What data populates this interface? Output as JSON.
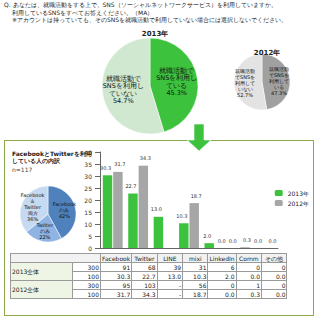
{
  "header": {
    "question": "Q. あなたは、就職活動をする上で、SNS（ソーシャルネットワークサービス）を利用していますか。",
    "instruction": "利用しているSNSをすべてお答えください。（MA）",
    "note": "※アカウントは持っていても、そのSNSを就職活動で利用していない場合には選択しないでください。"
  },
  "chart_data": [
    {
      "type": "pie",
      "title": "2013年",
      "categories": [
        "就職活動でSNSを利用している",
        "就職活動でSNSを利用していない"
      ],
      "values": [
        45.3,
        54.7
      ],
      "value_labels": [
        "45.3%",
        "54.7%"
      ],
      "colors": [
        "#3cc23c",
        "#cfe8cf"
      ],
      "data_labels": true
    },
    {
      "type": "pie",
      "title": "2012年",
      "categories": [
        "就職活動でSNSを利用している",
        "就職活動でSNSを利用していない"
      ],
      "values": [
        47.3,
        52.7
      ],
      "value_labels": [
        "47.3%",
        "52.7%"
      ],
      "colors": [
        "#a0a0a0",
        "#e3e3e3"
      ],
      "data_labels": true
    },
    {
      "type": "pie",
      "title": "FacebookとTwitterを利用している人の内訳",
      "subtitle": "n=117",
      "categories": [
        "Facebookのみ",
        "Twitterのみ",
        "Facebook＆Twitter両方"
      ],
      "values": [
        42,
        22,
        36
      ],
      "value_labels": [
        "42%",
        "22%",
        "36%"
      ],
      "colors": [
        "#4f81bd",
        "#8fb4e3",
        "#c5d9f1"
      ],
      "data_labels": true
    },
    {
      "type": "bar",
      "categories": [
        "Facebook",
        "Twitter",
        "LINE",
        "mixi",
        "LinkedIn",
        "Comm",
        "その他"
      ],
      "series": [
        {
          "name": "2013年",
          "color": "#3cc23c",
          "values": [
            30.3,
            22.7,
            13.0,
            10.3,
            2.0,
            0.0,
            0.0
          ],
          "value_labels": [
            "30.3",
            "22.7",
            "13.0",
            "10.3",
            "2.0",
            "0.0",
            "0.0"
          ]
        },
        {
          "name": "2012年",
          "color": "#a6a6a6",
          "values": [
            31.7,
            34.3,
            null,
            18.7,
            0.0,
            0.3,
            0.0
          ],
          "value_labels": [
            "31.7",
            "34.3",
            null,
            "18.7",
            "0.0",
            "0.3",
            "0.0"
          ]
        }
      ],
      "ylim": [
        0,
        40
      ],
      "yticks": [
        0,
        5,
        10,
        15,
        20,
        25,
        30,
        35,
        40
      ],
      "grid": false,
      "legend": "right",
      "data_labels": true,
      "tick_labels": "y"
    }
  ],
  "table": {
    "columns": [
      "Facebook",
      "Twitter",
      "LINE",
      "mixi",
      "LinkedIn",
      "Comm",
      "その他"
    ],
    "rows": [
      {
        "label": "2013全体",
        "count_row": [
          "300",
          "91",
          "68",
          "39",
          "31",
          "6",
          "0",
          "0"
        ],
        "percent_row": [
          "100",
          "30.3",
          "22.7",
          "13.0",
          "10.3",
          "2.0",
          "0.0",
          "0.0"
        ]
      },
      {
        "label": "2012全体",
        "count_row": [
          "300",
          "95",
          "103",
          "-",
          "56",
          "0",
          "1",
          "0"
        ],
        "percent_row": [
          "100",
          "31.7",
          "34.3",
          "-",
          "18.7",
          "0.0",
          "0.3",
          "0.0"
        ]
      }
    ]
  }
}
